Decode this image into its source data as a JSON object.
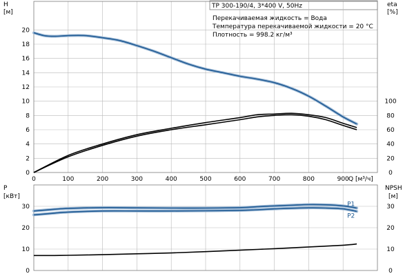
{
  "header": {
    "model": "TP 300-190/4, 3*400 V, 50Hz",
    "info_lines": [
      "Перекачиваемая жидкость = Вода",
      "Температура перекачиваемой жидкости = 20 °C",
      "Плотность = 998.2 кг/м³"
    ]
  },
  "colors": {
    "blue": "#1f5a93",
    "blue_light": "#9fbad6",
    "black": "#000000",
    "grid": "#b9b9b9"
  },
  "chart_data": [
    {
      "type": "line",
      "ylabel_left": [
        "H",
        "[м]"
      ],
      "ylabel_right": [
        "eta",
        "[%]"
      ],
      "xlabel": [
        "Q",
        "[м³/ч]"
      ],
      "xlim": [
        0,
        1000
      ],
      "ylim": [
        0,
        24
      ],
      "ylim_right": [
        0,
        240
      ],
      "x_ticks": [
        0,
        100,
        200,
        300,
        400,
        500,
        600,
        700,
        800,
        900
      ],
      "y_ticks": [
        0,
        2,
        4,
        6,
        8,
        10,
        12,
        14,
        16,
        18,
        20
      ],
      "y_ticks_right": [
        0,
        20,
        40,
        60,
        80,
        100
      ],
      "grid": true,
      "series": [
        {
          "color": "#1f5a93",
          "axis": "left",
          "x": [
            0,
            30,
            60,
            100,
            150,
            200,
            250,
            300,
            350,
            400,
            450,
            500,
            550,
            600,
            650,
            700,
            750,
            800,
            850,
            900,
            940
          ],
          "y": [
            19.6,
            19.2,
            19.1,
            19.2,
            19.2,
            18.9,
            18.5,
            17.8,
            17.0,
            16.1,
            15.2,
            14.5,
            14.0,
            13.5,
            13.1,
            12.6,
            11.8,
            10.7,
            9.3,
            7.8,
            6.8
          ]
        },
        {
          "color": "#000000",
          "axis": "right",
          "x": [
            0,
            100,
            200,
            300,
            400,
            500,
            600,
            650,
            700,
            750,
            800,
            850,
            900,
            940
          ],
          "y": [
            0,
            22,
            38,
            51,
            60,
            67,
            74,
            78,
            80,
            81,
            79,
            74,
            66,
            60
          ]
        },
        {
          "color": "#000000",
          "axis": "right",
          "x": [
            0,
            100,
            200,
            300,
            400,
            500,
            600,
            650,
            700,
            750,
            800,
            850,
            900,
            940
          ],
          "y": [
            0,
            24,
            40,
            53,
            62,
            70,
            77,
            81,
            82,
            83,
            81,
            77,
            69,
            63
          ]
        }
      ]
    },
    {
      "type": "line",
      "ylabel_left": [
        "P",
        "[кВт]"
      ],
      "ylabel_right": [
        "NPSH",
        "[м]"
      ],
      "xlim": [
        0,
        1000
      ],
      "ylim": [
        0,
        40
      ],
      "ylim_right": [
        0,
        40
      ],
      "x_ticks": [
        0,
        100,
        200,
        300,
        400,
        500,
        600,
        700,
        800,
        900
      ],
      "y_ticks": [
        0,
        10,
        20,
        30
      ],
      "y_ticks_right": [
        0,
        10,
        20,
        30
      ],
      "grid": true,
      "series": [
        {
          "name": "P1",
          "color": "#1f5a93",
          "axis": "left",
          "x": [
            0,
            60,
            100,
            200,
            300,
            400,
            500,
            600,
            650,
            700,
            750,
            800,
            850,
            900,
            940
          ],
          "y": [
            27.8,
            28.6,
            29.0,
            29.4,
            29.3,
            29.2,
            29.2,
            29.4,
            29.8,
            30.2,
            30.5,
            30.8,
            30.7,
            30.2,
            29.2
          ]
        },
        {
          "name": "P2",
          "color": "#1f5a93",
          "axis": "left",
          "x": [
            0,
            60,
            100,
            200,
            300,
            400,
            500,
            600,
            650,
            700,
            750,
            800,
            850,
            900,
            940
          ],
          "y": [
            26.0,
            26.8,
            27.3,
            27.8,
            27.8,
            27.8,
            27.9,
            28.1,
            28.4,
            28.8,
            29.1,
            29.3,
            29.2,
            28.8,
            27.6
          ]
        },
        {
          "color": "#000000",
          "axis": "right",
          "x": [
            0,
            60,
            100,
            200,
            300,
            400,
            500,
            600,
            700,
            800,
            900,
            940
          ],
          "y": [
            7.0,
            7.0,
            7.1,
            7.4,
            7.8,
            8.2,
            8.8,
            9.5,
            10.2,
            11.0,
            11.8,
            12.4
          ]
        }
      ]
    }
  ]
}
